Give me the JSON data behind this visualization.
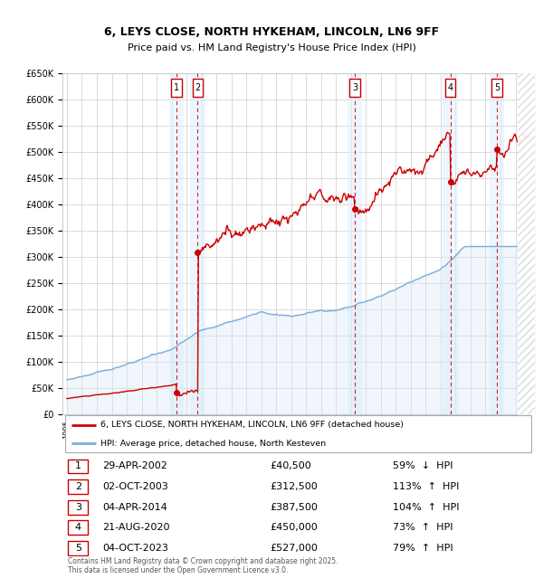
{
  "title": "6, LEYS CLOSE, NORTH HYKEHAM, LINCOLN, LN6 9FF",
  "subtitle": "Price paid vs. HM Land Registry's House Price Index (HPI)",
  "ylim": [
    0,
    650000
  ],
  "yticks": [
    0,
    50000,
    100000,
    150000,
    200000,
    250000,
    300000,
    350000,
    400000,
    450000,
    500000,
    550000,
    600000,
    650000
  ],
  "ytick_labels": [
    "£0",
    "£50K",
    "£100K",
    "£150K",
    "£200K",
    "£250K",
    "£300K",
    "£350K",
    "£400K",
    "£450K",
    "£500K",
    "£550K",
    "£600K",
    "£650K"
  ],
  "xlim_start": 1994.7,
  "xlim_end": 2026.3,
  "transaction_color": "#cc0000",
  "hpi_color": "#7aadda",
  "hpi_fill_color": "#d6e8f5",
  "shade_color": "#ddeeff",
  "transactions": [
    {
      "label": "1",
      "date_num": 2002.33,
      "price": 40500,
      "date_str": "29-APR-2002",
      "pct": "59%",
      "dir": "↓"
    },
    {
      "label": "2",
      "date_num": 2003.75,
      "price": 312500,
      "date_str": "02-OCT-2003",
      "pct": "113%",
      "dir": "↑"
    },
    {
      "label": "3",
      "date_num": 2014.25,
      "price": 387500,
      "date_str": "04-APR-2014",
      "pct": "104%",
      "dir": "↑"
    },
    {
      "label": "4",
      "date_num": 2020.64,
      "price": 450000,
      "date_str": "21-AUG-2020",
      "pct": "73%",
      "dir": "↑"
    },
    {
      "label": "5",
      "date_num": 2023.75,
      "price": 527000,
      "date_str": "04-OCT-2023",
      "pct": "79%",
      "dir": "↑"
    }
  ],
  "legend_line1": "6, LEYS CLOSE, NORTH HYKEHAM, LINCOLN, LN6 9FF (detached house)",
  "legend_line2": "HPI: Average price, detached house, North Kesteven",
  "footer": "Contains HM Land Registry data © Crown copyright and database right 2025.\nThis data is licensed under the Open Government Licence v3.0.",
  "background_color": "#ffffff",
  "grid_color": "#cccccc"
}
